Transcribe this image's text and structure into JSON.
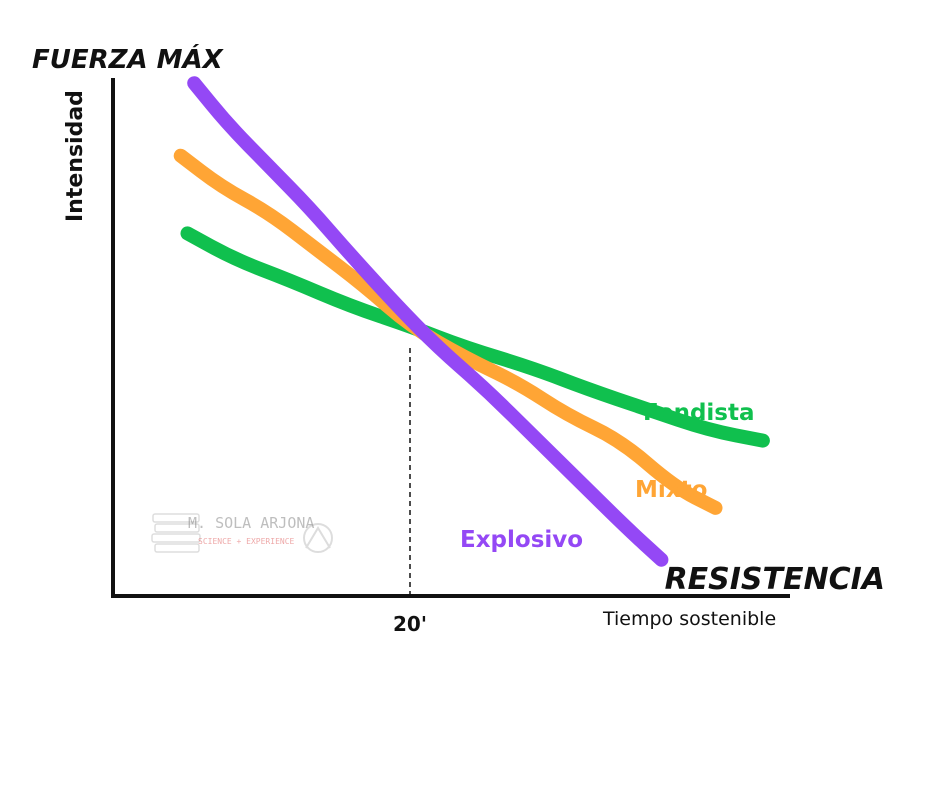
{
  "chart_data": {
    "type": "line",
    "title": "FUERZA MÁX",
    "ylabel": "Intensidad",
    "xlabel": "RESISTENCIA",
    "xsublabel": "Tiempo sostenible",
    "marker_label": "20'",
    "xlim": [
      0,
      1
    ],
    "ylim": [
      0,
      1
    ],
    "grid": false,
    "series": [
      {
        "name": "Fondista",
        "color": "#10c04e",
        "x": [
          0.11,
          0.18,
          0.26,
          0.35,
          0.44,
          0.52,
          0.62,
          0.7,
          0.79,
          0.88,
          0.96
        ],
        "y": [
          0.7,
          0.65,
          0.61,
          0.56,
          0.52,
          0.48,
          0.44,
          0.4,
          0.36,
          0.32,
          0.3
        ]
      },
      {
        "name": "Mixto",
        "color": "#ffa535",
        "x": [
          0.1,
          0.16,
          0.23,
          0.3,
          0.37,
          0.44,
          0.52,
          0.6,
          0.67,
          0.75,
          0.83,
          0.89
        ],
        "y": [
          0.85,
          0.79,
          0.74,
          0.67,
          0.6,
          0.52,
          0.46,
          0.41,
          0.35,
          0.3,
          0.21,
          0.17
        ]
      },
      {
        "name": "Explosivo",
        "color": "#9448f5",
        "x": [
          0.12,
          0.17,
          0.23,
          0.29,
          0.35,
          0.42,
          0.48,
          0.55,
          0.62,
          0.69,
          0.76,
          0.81
        ],
        "y": [
          0.99,
          0.91,
          0.83,
          0.75,
          0.66,
          0.56,
          0.48,
          0.4,
          0.31,
          0.22,
          0.13,
          0.07
        ]
      }
    ]
  },
  "watermark": {
    "name": "M. SOLA ARJONA",
    "tagline": "SCIENCE + EXPERIENCE"
  }
}
